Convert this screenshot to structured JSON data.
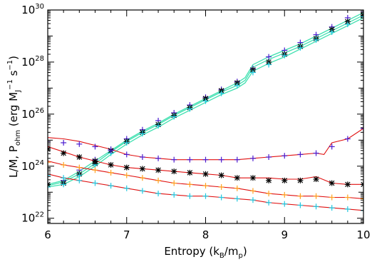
{
  "chart_data": {
    "type": "line",
    "xlabel": "Entropy (k_B/m_p)",
    "ylabel": "L/M, P_ohm (erg M_J^-1 s^-1)",
    "xlim": [
      6,
      10
    ],
    "ylim_log10": [
      21.8,
      30
    ],
    "y_scale": "log",
    "x_ticks": [
      "6",
      "7",
      "8",
      "9",
      "10"
    ],
    "y_ticks": [
      {
        "base": "10",
        "exp": "22",
        "v": 22
      },
      {
        "base": "10",
        "exp": "24",
        "v": 24
      },
      {
        "base": "10",
        "exp": "26",
        "v": 26
      },
      {
        "base": "10",
        "exp": "28",
        "v": 28
      },
      {
        "base": "10",
        "exp": "30",
        "v": 30
      }
    ],
    "colors": {
      "luminosity_fit": "#40e0b0",
      "ohmic_fit": "#e01010",
      "purple": "#4b1bd0",
      "black": "#000000",
      "orange": "#ffa020",
      "cyan": "#20c8e0"
    },
    "luminosity_curves": [
      {
        "x": [
          6.0,
          6.2,
          6.4,
          6.6,
          6.8,
          7.0,
          7.2,
          7.4,
          7.6,
          7.8,
          8.0,
          8.2,
          8.4,
          8.5,
          8.6,
          8.8,
          9.0,
          9.2,
          9.4,
          9.6,
          9.8,
          10.0
        ],
        "log10y": [
          23.25,
          23.4,
          23.7,
          24.1,
          24.55,
          24.95,
          25.3,
          25.6,
          25.95,
          26.25,
          26.55,
          26.85,
          27.1,
          27.3,
          27.8,
          28.1,
          28.35,
          28.6,
          28.9,
          29.2,
          29.5,
          29.8
        ]
      },
      {
        "x": [
          6.0,
          6.2,
          6.4,
          6.6,
          6.8,
          7.0,
          7.2,
          7.4,
          7.6,
          7.8,
          8.0,
          8.2,
          8.4,
          8.5,
          8.6,
          8.8,
          9.0,
          9.2,
          9.4,
          9.6,
          9.8,
          10.0
        ],
        "log10y": [
          23.2,
          23.3,
          23.6,
          24.0,
          24.45,
          24.85,
          25.2,
          25.5,
          25.85,
          26.15,
          26.45,
          26.75,
          27.0,
          27.2,
          27.65,
          27.95,
          28.2,
          28.5,
          28.8,
          29.1,
          29.4,
          29.7
        ]
      },
      {
        "x": [
          6.0,
          6.2,
          6.4,
          6.6,
          6.8,
          7.0,
          7.2,
          7.4,
          7.6,
          7.8,
          8.0,
          8.2,
          8.4,
          8.5,
          8.6,
          8.8,
          9.0,
          9.2,
          9.4,
          9.6,
          9.8,
          10.0
        ],
        "log10y": [
          23.3,
          23.45,
          23.8,
          24.2,
          24.6,
          25.0,
          25.35,
          25.65,
          26.0,
          26.3,
          26.6,
          26.9,
          27.2,
          27.4,
          27.9,
          28.2,
          28.45,
          28.7,
          29.0,
          29.3,
          29.6,
          29.9
        ]
      }
    ],
    "ohmic_curves": [
      {
        "x": [
          6.0,
          6.2,
          6.4,
          6.6,
          6.8,
          7.0,
          7.2,
          7.4,
          7.6,
          7.8,
          8.0,
          8.2,
          8.4,
          8.6,
          8.8,
          9.0,
          9.2,
          9.4,
          9.5,
          9.6,
          9.8,
          10.0
        ],
        "log10y": [
          25.1,
          25.05,
          24.95,
          24.8,
          24.65,
          24.45,
          24.35,
          24.3,
          24.25,
          24.25,
          24.25,
          24.25,
          24.25,
          24.3,
          24.35,
          24.4,
          24.45,
          24.5,
          24.45,
          24.9,
          25.05,
          25.45
        ]
      },
      {
        "x": [
          6.0,
          6.2,
          6.4,
          6.6,
          6.8,
          7.0,
          7.2,
          7.4,
          7.6,
          7.8,
          8.0,
          8.2,
          8.4,
          8.6,
          8.8,
          9.0,
          9.2,
          9.4,
          9.6,
          9.8,
          10.0
        ],
        "log10y": [
          24.75,
          24.55,
          24.35,
          24.2,
          24.05,
          23.95,
          23.9,
          23.85,
          23.8,
          23.75,
          23.7,
          23.65,
          23.55,
          23.55,
          23.55,
          23.5,
          23.5,
          23.6,
          23.35,
          23.3,
          23.3
        ]
      },
      {
        "x": [
          6.0,
          6.2,
          6.4,
          6.6,
          6.8,
          7.0,
          7.2,
          7.4,
          7.6,
          7.8,
          8.0,
          8.2,
          8.4,
          8.6,
          8.8,
          9.0,
          9.2,
          9.4,
          9.6,
          9.8,
          10.0
        ],
        "log10y": [
          24.2,
          24.05,
          23.95,
          23.85,
          23.75,
          23.65,
          23.55,
          23.45,
          23.35,
          23.3,
          23.25,
          23.2,
          23.15,
          23.05,
          22.95,
          22.9,
          22.85,
          22.85,
          22.8,
          22.8,
          22.75
        ]
      },
      {
        "x": [
          6.0,
          6.2,
          6.4,
          6.6,
          6.8,
          7.0,
          7.2,
          7.4,
          7.6,
          7.8,
          8.0,
          8.2,
          8.4,
          8.6,
          8.8,
          9.0,
          9.2,
          9.4,
          9.6,
          9.8,
          10.0
        ],
        "log10y": [
          23.7,
          23.55,
          23.45,
          23.35,
          23.25,
          23.15,
          23.05,
          22.95,
          22.9,
          22.85,
          22.85,
          22.8,
          22.75,
          22.7,
          22.6,
          22.55,
          22.5,
          22.45,
          22.4,
          22.35,
          22.3
        ]
      }
    ],
    "markers": [
      {
        "color": "purple",
        "symbol": "plus",
        "x": [
          6.0,
          6.2,
          6.4,
          6.6,
          6.8,
          7.0,
          7.2,
          7.4,
          7.6,
          7.8,
          8.0,
          8.2,
          8.4,
          8.6,
          8.8,
          9.0,
          9.2,
          9.4,
          9.6,
          9.8,
          10.0
        ],
        "log10y": [
          23.3,
          23.45,
          23.85,
          24.25,
          24.65,
          25.05,
          25.4,
          25.75,
          26.05,
          26.35,
          26.65,
          26.95,
          27.25,
          27.75,
          28.2,
          28.45,
          28.75,
          29.05,
          29.35,
          29.7,
          29.95
        ]
      },
      {
        "color": "black",
        "symbol": "star",
        "x": [
          6.0,
          6.2,
          6.4,
          6.6,
          6.8,
          7.0,
          7.2,
          7.4,
          7.6,
          7.8,
          8.0,
          8.2,
          8.4,
          8.6,
          8.8,
          9.0,
          9.2,
          9.4,
          9.6,
          9.8,
          10.0
        ],
        "log10y": [
          23.3,
          23.35,
          23.7,
          24.1,
          24.6,
          24.95,
          25.3,
          25.6,
          25.95,
          26.25,
          26.6,
          26.9,
          27.2,
          27.7,
          28.0,
          28.3,
          28.6,
          28.9,
          29.25,
          29.55,
          29.8
        ]
      },
      {
        "color": "cyan",
        "symbol": "plus",
        "x": [
          6.0,
          6.2,
          6.4,
          6.6,
          6.8,
          7.0,
          7.2,
          7.4,
          7.6,
          7.8,
          8.0,
          8.2,
          8.4,
          8.6,
          8.8,
          9.0,
          9.2,
          9.4,
          9.6,
          9.8,
          10.0
        ],
        "log10y": [
          23.2,
          23.3,
          23.65,
          24.05,
          24.5,
          24.9,
          25.25,
          25.55,
          25.9,
          26.2,
          26.5,
          26.8,
          27.1,
          27.6,
          27.9,
          28.25,
          28.55,
          28.85,
          29.15,
          29.45,
          29.75
        ]
      },
      {
        "color": "purple",
        "symbol": "plus",
        "x": [
          6.0,
          6.2,
          6.4,
          6.6,
          6.8,
          7.0,
          7.2,
          7.4,
          7.6,
          7.8,
          8.0,
          8.2,
          8.4,
          8.6,
          8.8,
          9.0,
          9.2,
          9.4,
          9.6,
          9.8,
          10.0
        ],
        "log10y": [
          24.95,
          24.9,
          24.85,
          24.75,
          24.6,
          24.45,
          24.35,
          24.3,
          24.25,
          24.25,
          24.25,
          24.25,
          24.25,
          24.3,
          24.35,
          24.4,
          24.45,
          24.5,
          24.75,
          25.05,
          25.45
        ]
      },
      {
        "color": "black",
        "symbol": "star",
        "x": [
          6.0,
          6.2,
          6.4,
          6.6,
          6.8,
          7.0,
          7.2,
          7.4,
          7.6,
          7.8,
          8.0,
          8.2,
          8.4,
          8.6,
          8.8,
          9.0,
          9.2,
          9.4,
          9.6,
          9.8,
          10.0
        ],
        "log10y": [
          24.65,
          24.5,
          24.35,
          24.2,
          24.05,
          23.95,
          23.9,
          23.85,
          23.8,
          23.75,
          23.7,
          23.65,
          23.55,
          23.55,
          23.45,
          23.45,
          23.45,
          23.5,
          23.35,
          23.3,
          23.3
        ]
      },
      {
        "color": "orange",
        "symbol": "plus",
        "x": [
          6.0,
          6.2,
          6.4,
          6.6,
          6.8,
          7.0,
          7.2,
          7.4,
          7.6,
          7.8,
          8.0,
          8.2,
          8.4,
          8.6,
          8.8,
          9.0,
          9.2,
          9.4,
          9.6,
          9.8,
          10.0
        ],
        "log10y": [
          24.15,
          24.05,
          23.95,
          23.85,
          23.75,
          23.65,
          23.55,
          23.45,
          23.35,
          23.3,
          23.25,
          23.2,
          23.15,
          23.05,
          22.95,
          22.9,
          22.85,
          22.85,
          22.8,
          22.8,
          22.75
        ]
      },
      {
        "color": "cyan",
        "symbol": "plus",
        "x": [
          6.0,
          6.2,
          6.4,
          6.6,
          6.8,
          7.0,
          7.2,
          7.4,
          7.6,
          7.8,
          8.0,
          8.2,
          8.4,
          8.6,
          8.8,
          9.0,
          9.2,
          9.4,
          9.6,
          9.8,
          10.0
        ],
        "log10y": [
          23.65,
          23.55,
          23.45,
          23.35,
          23.25,
          23.15,
          23.05,
          22.95,
          22.9,
          22.85,
          22.85,
          22.8,
          22.75,
          22.7,
          22.6,
          22.55,
          22.5,
          22.45,
          22.4,
          22.35,
          22.3
        ]
      }
    ]
  }
}
